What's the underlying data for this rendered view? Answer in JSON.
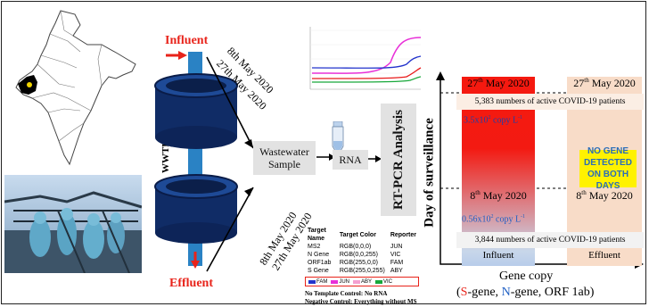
{
  "influent_label": "Influent",
  "effluent_label": "Effluent",
  "wwtp_label": "WWTP",
  "date_top_1": "8th May 2020",
  "date_top_2": "27th May 2020",
  "date_bot_1": "8th May 2020",
  "date_bot_2": "27th May 2020",
  "wastewater_sample": "Wastewater Sample",
  "rna_label": "RNA",
  "rtpcr_label": "RT-PCR Analysis",
  "y_axis_label": "Day of surveillance",
  "x_axis_label": "Gene copy",
  "gene_legend": {
    "s": "S",
    "s_rest": "-gene, ",
    "n": "N",
    "n_rest": "-gene, ORF 1ab)",
    "open": "("
  },
  "colors": {
    "s_gene": "#e8231a",
    "n_gene": "#1f5fc4",
    "influent_top": "#f5190f",
    "effluent_bg": "#f8dcc8",
    "sky": "#9db7d9"
  },
  "chart_data": {
    "type": "table",
    "columns": [
      "Influent",
      "Effluent"
    ],
    "rows": [
      {
        "date": "27th May 2020",
        "influent": "3.5x10^2 copy L^-1",
        "effluent": "NO GENE DETECTED ON BOTH DAYS",
        "active_patients": "5,383 numbers of active COVID-19 patients"
      },
      {
        "date": "8th May 2020",
        "influent": "0.56x10^2 copy L^-1",
        "effluent": "NO GENE DETECTED ON BOTH DAYS",
        "active_patients": "3,844 numbers of active COVID-19 patients"
      }
    ]
  },
  "panel": {
    "influent_top_date": "27",
    "influent_top_sup": "th",
    "influent_top_rest": " May 2020",
    "effluent_top_date": "27",
    "effluent_top_sup": "th",
    "effluent_top_rest": " May 2020",
    "patients_top": "5,383 numbers of active COVID-19 patients",
    "conc_top_main": "3.5x10",
    "conc_top_sup": "2",
    "conc_top_rest": " copy L",
    "conc_top_exp": "-1",
    "no_gene_1": "NO GENE",
    "no_gene_2": "DETECTED",
    "no_gene_3": "ON BOTH DAYS",
    "influent_bot_date": "8",
    "influent_bot_sup": "th",
    "influent_bot_rest": " May 2020",
    "effluent_bot_date": "8",
    "effluent_bot_sup": "th",
    "effluent_bot_rest": " May 2020",
    "conc_bot_main": "0.56x10",
    "conc_bot_sup": "2",
    "conc_bot_rest": " copy L",
    "conc_bot_exp": "-1",
    "patients_bot": "3,844 numbers of active COVID-19 patients",
    "col_influent": "Influent",
    "col_effluent": "Effluent"
  },
  "pcr_table": {
    "headers": [
      "Target Name",
      "Target Color",
      "Reporter"
    ],
    "rows": [
      [
        "MS2",
        "RGB(0,0,0)",
        "JUN"
      ],
      [
        "N Gene",
        "RGB(0,0,255)",
        "VIC"
      ],
      [
        "ORF1ab",
        "RGB(255,0,0)",
        "FAM"
      ],
      [
        "S Gene",
        "RGB(255,0,255)",
        "ABY"
      ]
    ],
    "legend": [
      "FAM",
      "JUN",
      "ABY",
      "VIC"
    ],
    "note1": "No Template Control: No RNA",
    "note2": "Negative Control: Everything without MS"
  }
}
